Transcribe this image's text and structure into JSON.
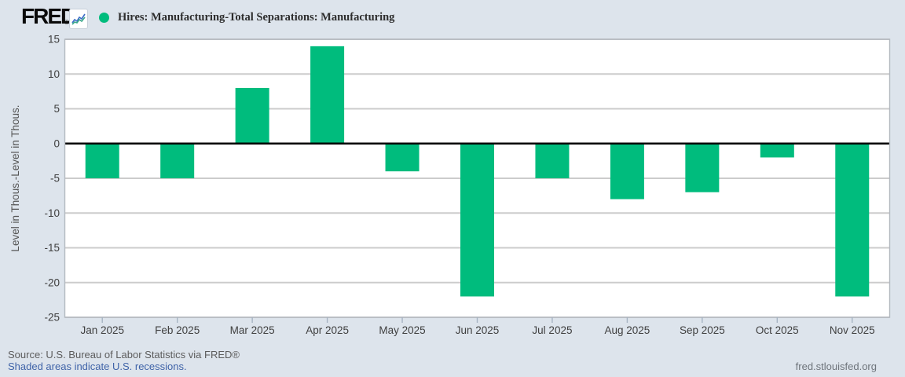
{
  "header": {
    "logo_text": "FRED",
    "registered_mark": "®",
    "series_title": "Hires: Manufacturing-Total Separations: Manufacturing"
  },
  "chart_data": {
    "type": "bar",
    "title": "Hires: Manufacturing-Total Separations: Manufacturing",
    "categories": [
      "Jan 2025",
      "Feb 2025",
      "Mar 2025",
      "Apr 2025",
      "May 2025",
      "Jun 2025",
      "Jul 2025",
      "Aug 2025",
      "Sep 2025",
      "Oct 2025",
      "Nov 2025"
    ],
    "values": [
      -5,
      -5,
      8,
      14,
      -4,
      -22,
      -5,
      -8,
      -7,
      -2,
      -22
    ],
    "xlabel": "",
    "ylabel": "Level in Thous.-Level in Thous.",
    "ylim": [
      -25,
      15
    ],
    "ytick_step": 5,
    "yticks": [
      15,
      10,
      5,
      0,
      -5,
      -10,
      -15,
      -20,
      -25
    ],
    "grid": true,
    "zero_line": true,
    "legend_position": "top-left",
    "bar_color": "#00bc7d"
  },
  "colors": {
    "page_bg": "#dde4ec",
    "plot_bg": "#ffffff",
    "grid": "#cccccc",
    "plot_border": "#b3b9c0",
    "zero_line": "#000000",
    "bar": "#00bc7d",
    "tick_text": "#404040",
    "axis_title_text": "#555555",
    "tick_mark": "#a7b4c3",
    "icon_line1": "#3a6bc7",
    "icon_line2": "#3aa78b"
  },
  "footer": {
    "source": "Source: U.S. Bureau of Labor Statistics via FRED®",
    "note": "Shaded areas indicate U.S. recessions.",
    "site": "fred.stlouisfed.org"
  }
}
